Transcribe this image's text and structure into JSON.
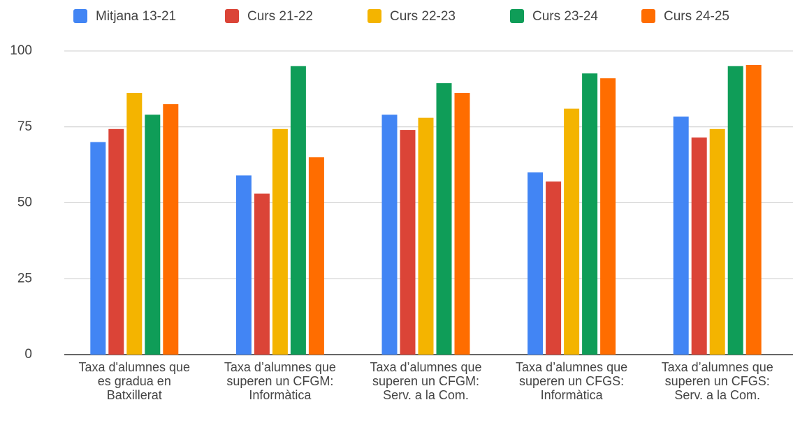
{
  "chart_data": {
    "type": "bar",
    "categories": [
      "Taxa d'alumnes que es gradua en Batxillerat",
      "Taxa d’alumnes que superen un CFGM: Informàtica",
      "Taxa d’alumnes que superen un CFGM: Serv. a la Com.",
      "Taxa d’alumnes que superen un CFGS: Informàtica",
      "Taxa d’alumnes que superen un CFGS: Serv. a la Com."
    ],
    "series": [
      {
        "name": "Mitjana 13-21",
        "color": "#4285f4",
        "values": [
          70,
          59,
          79,
          60,
          78.4
        ]
      },
      {
        "name": "Curs 21-22",
        "color": "#db4437",
        "values": [
          74.3,
          53,
          74,
          57,
          71.5
        ]
      },
      {
        "name": "Curs 22-23",
        "color": "#f4b400",
        "values": [
          86.2,
          74.3,
          78,
          81,
          74.3
        ]
      },
      {
        "name": "Curs 23-24",
        "color": "#0f9d58",
        "values": [
          79,
          95,
          89.4,
          92.6,
          95
        ]
      },
      {
        "name": "Curs 24-25",
        "color": "#ff6d00",
        "values": [
          82.5,
          65,
          86.2,
          91,
          95.4
        ]
      }
    ],
    "ylim": [
      0,
      100
    ],
    "yticks": [
      0,
      25,
      50,
      75,
      100
    ],
    "grid": true,
    "legend": "top"
  }
}
